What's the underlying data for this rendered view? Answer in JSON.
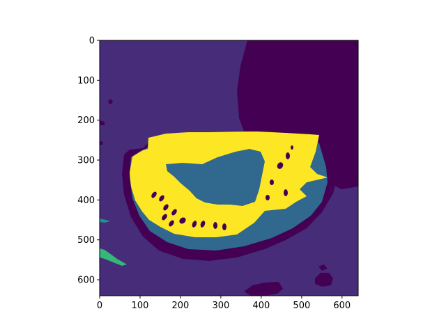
{
  "chart_data": {
    "type": "heatmap",
    "title": "",
    "xlabel": "",
    "ylabel": "",
    "xlim": [
      0,
      640
    ],
    "ylim": [
      640,
      0
    ],
    "x_ticks": [
      "0",
      "100",
      "200",
      "300",
      "400",
      "500",
      "600"
    ],
    "y_ticks": [
      "0",
      "100",
      "200",
      "300",
      "400",
      "500",
      "600"
    ],
    "grid": false,
    "colormap": "viridis",
    "legend": "none",
    "class_colors": {
      "class_0": "#440154",
      "class_1": "#472c7a",
      "class_2": "#31688e",
      "class_3": "#21918c",
      "class_4": "#35b779",
      "class_5": "#fde725"
    }
  }
}
